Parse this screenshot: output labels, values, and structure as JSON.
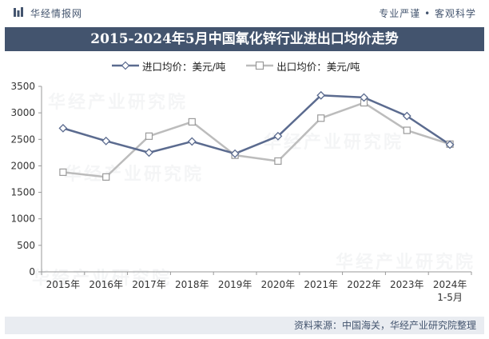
{
  "header": {
    "brand": "华经情报网",
    "slogan": "专业严谨 • 客观科学"
  },
  "title": "2015-2024年5月中国氧化锌行业进出口均价走势",
  "footer": {
    "source": "资料来源：中国海关，华经产业研究院整理"
  },
  "watermark": "华经产业研究院",
  "colors": {
    "title_bg": "#43546e",
    "import": "#5b6b8f",
    "export": "#bcbcbc",
    "footer_bg": "#e9ecf1"
  },
  "chart_data": {
    "type": "line",
    "categories": [
      "2015年",
      "2016年",
      "2017年",
      "2018年",
      "2019年",
      "2020年",
      "2021年",
      "2022年",
      "2023年",
      "2024年\n1-5月"
    ],
    "series": [
      {
        "name": "进口均价：美元/吨",
        "marker": "diamond",
        "color": "#5b6b8f",
        "values": [
          2710,
          2470,
          2250,
          2460,
          2230,
          2560,
          3330,
          3290,
          2940,
          2400
        ]
      },
      {
        "name": "出口均价：美元/吨",
        "marker": "square",
        "color": "#bcbcbc",
        "values": [
          1880,
          1790,
          2560,
          2830,
          2200,
          2090,
          2900,
          3190,
          2670,
          2410
        ]
      }
    ],
    "ylim": [
      0,
      3500
    ],
    "yticks": [
      0,
      500,
      1000,
      1500,
      2000,
      2500,
      3000,
      3500
    ],
    "grid": false,
    "legend": "top-left"
  }
}
